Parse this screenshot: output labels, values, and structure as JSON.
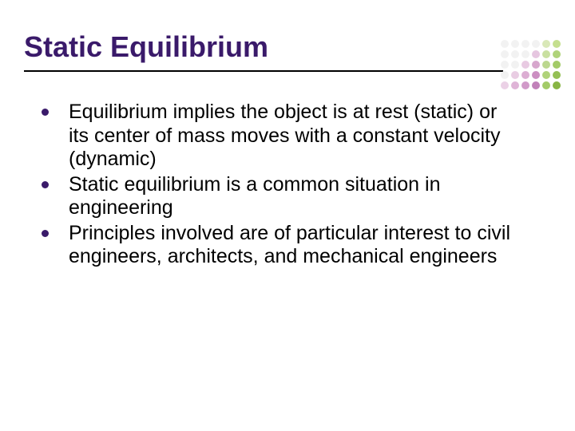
{
  "slide": {
    "title": "Static Equilibrium",
    "title_color": "#3a1a6a",
    "title_fontsize": 36,
    "underline_color": "#000000",
    "bullets": [
      "Equilibrium implies the object is at rest (static) or its center of mass moves with a constant velocity (dynamic)",
      "Static equilibrium is a common situation in engineering",
      "Principles involved are of particular interest to civil engineers, architects, and mechanical engineers"
    ],
    "bullet_color": "#3a1a6a",
    "body_text_color": "#000000",
    "body_fontsize": 25,
    "background_color": "#ffffff"
  },
  "decoration": {
    "dot_colors": [
      "#f2f2f2",
      "#f2f2f2",
      "#f2f2f2",
      "#f2f2f2",
      "#d9e8b8",
      "#c5df8f",
      "#f2f2f2",
      "#f2f2f2",
      "#f2f2f2",
      "#e6c6e0",
      "#c9e0a0",
      "#b0d37a",
      "#f2f2f2",
      "#f2f2f2",
      "#e8cae2",
      "#d7a7cd",
      "#bcd88f",
      "#a3cb68",
      "#f2f2f2",
      "#e9cde3",
      "#dcaed3",
      "#cc8fc2",
      "#b0d37a",
      "#95c055",
      "#ebd1e6",
      "#dfb4d7",
      "#d19ac9",
      "#c181b9",
      "#a3cb68",
      "#88b544"
    ],
    "dot_size": 10,
    "dot_gap": 3
  }
}
